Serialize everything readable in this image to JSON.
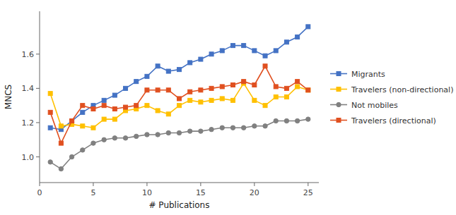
{
  "chart_data": {
    "type": "line",
    "xlabel": "# Publications",
    "ylabel": "MNCS",
    "x": [
      1,
      2,
      3,
      4,
      5,
      6,
      7,
      8,
      9,
      10,
      11,
      12,
      13,
      14,
      15,
      16,
      17,
      18,
      19,
      20,
      21,
      22,
      23,
      24,
      25
    ],
    "series": [
      {
        "name": "Migrants",
        "color": "#4472C4",
        "marker": "square",
        "values": [
          1.17,
          1.16,
          1.21,
          1.26,
          1.3,
          1.33,
          1.36,
          1.4,
          1.44,
          1.47,
          1.53,
          1.5,
          1.51,
          1.55,
          1.57,
          1.6,
          1.62,
          1.65,
          1.65,
          1.62,
          1.59,
          1.62,
          1.67,
          1.7,
          1.76
        ]
      },
      {
        "name": "Travelers (non-directional)",
        "color": "#FFC000",
        "marker": "square",
        "values": [
          1.37,
          1.18,
          1.19,
          1.18,
          1.17,
          1.22,
          1.22,
          1.27,
          1.28,
          1.3,
          1.27,
          1.25,
          1.3,
          1.33,
          1.32,
          1.33,
          1.34,
          1.33,
          1.43,
          1.33,
          1.3,
          1.35,
          1.35,
          1.41,
          1.39
        ]
      },
      {
        "name": "Not mobiles",
        "color": "#808080",
        "marker": "circle",
        "values": [
          0.97,
          0.93,
          1.0,
          1.04,
          1.08,
          1.1,
          1.11,
          1.11,
          1.12,
          1.13,
          1.13,
          1.14,
          1.14,
          1.15,
          1.15,
          1.16,
          1.17,
          1.17,
          1.17,
          1.18,
          1.18,
          1.21,
          1.21,
          1.21,
          1.22
        ]
      },
      {
        "name": "Travelers (directional)",
        "color": "#E05020",
        "marker": "square",
        "values": [
          1.26,
          1.08,
          1.21,
          1.3,
          1.28,
          1.3,
          1.28,
          1.29,
          1.3,
          1.39,
          1.39,
          1.39,
          1.34,
          1.38,
          1.39,
          1.4,
          1.41,
          1.42,
          1.44,
          1.42,
          1.53,
          1.41,
          1.4,
          1.44,
          1.39
        ]
      }
    ],
    "xlim": [
      0,
      26
    ],
    "ylim": [
      0.85,
      1.85
    ],
    "xticks": [
      0,
      5,
      10,
      15,
      20,
      25
    ],
    "yticks": [
      {
        "value": 1.0,
        "label": "1.0"
      },
      1.2,
      1.4,
      1.6
    ],
    "grid": false,
    "legend": "right"
  }
}
